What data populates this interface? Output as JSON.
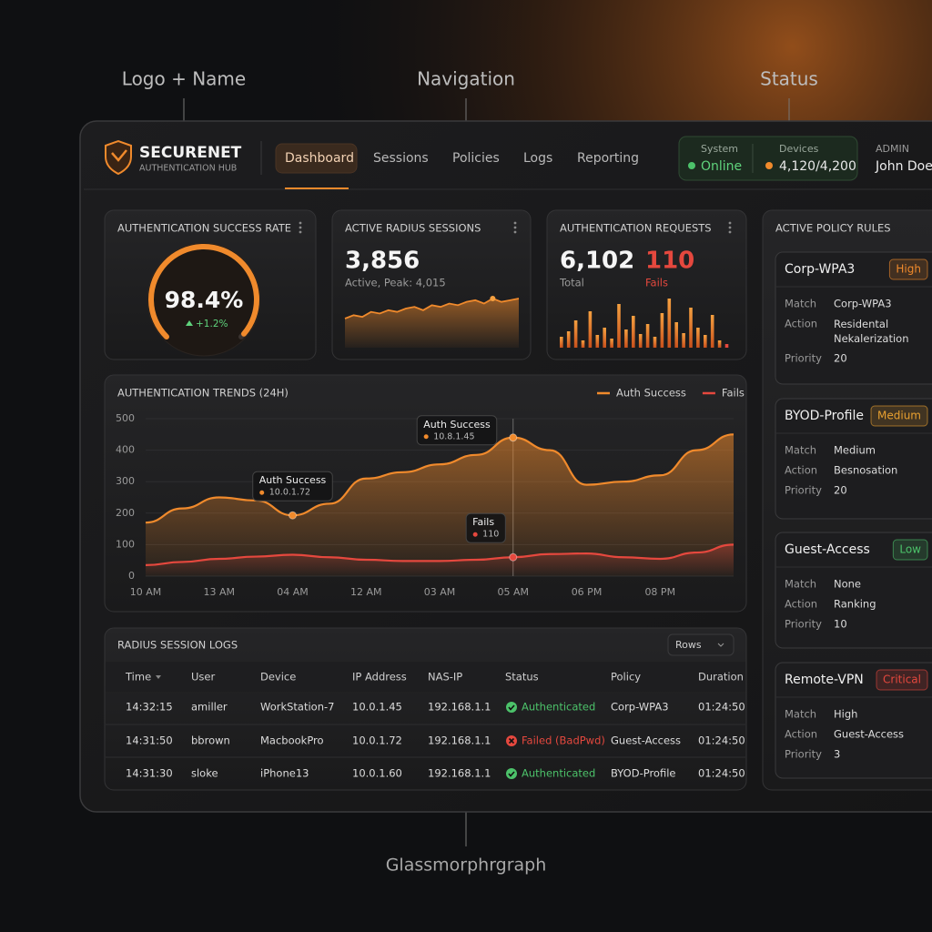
{
  "annotations": {
    "logo": "Logo + Name",
    "navigation": "Navigation",
    "status": "Status",
    "footer": "Glassmorphrgraph"
  },
  "header": {
    "brand": "SECURENET",
    "brand_sub": "AUTHENTICATION HUB",
    "nav": [
      "Dashboard",
      "Sessions",
      "Policies",
      "Logs",
      "Reporting"
    ],
    "nav_active": 0,
    "system_label": "System",
    "system_value": "Online",
    "devices_label": "Devices",
    "devices_value": "4,120/4,200",
    "user_role": "ADMIN",
    "user_name": "John Doe"
  },
  "success_card": {
    "title": "AUTHENTICATION SUCCESS RATE",
    "gauge": {
      "value": 98.4,
      "label": "98.4%",
      "range": [
        0,
        100
      ]
    },
    "change": "+1.2%"
  },
  "sessions_card": {
    "title": "ACTIVE RADIUS SESSIONS",
    "value": "3,856",
    "sub": "Active, Peak: 4,015",
    "sparkline": [
      30,
      32,
      31,
      34,
      33,
      35,
      34,
      36,
      37,
      35,
      38,
      37,
      39,
      38,
      40,
      41,
      39,
      42,
      40,
      41,
      42
    ]
  },
  "requests_card": {
    "title": "AUTHENTICATION REQUESTS",
    "total": "6,102",
    "total_label": "Total",
    "fails": "110",
    "fails_label": "Fails",
    "bars": [
      12,
      18,
      30,
      8,
      40,
      14,
      22,
      10,
      48,
      20,
      35,
      15,
      26,
      12,
      38,
      54,
      28,
      16,
      44,
      22,
      14,
      36,
      8,
      4
    ]
  },
  "chart_data": {
    "type": "line",
    "title": "AUTHENTICATION TRENDS (24H)",
    "categories": [
      "10 AM",
      null,
      "13 AM",
      null,
      "04 AM",
      null,
      "12 AM",
      null,
      "03 AM",
      null,
      "05 AM",
      null,
      "06 PM",
      null,
      "08 PM",
      null,
      null
    ],
    "ylim": [
      0,
      500
    ],
    "yticks": [
      0,
      100,
      200,
      300,
      400,
      500
    ],
    "grid": true,
    "legend": "top-right",
    "series": [
      {
        "name": "Auth Success",
        "color": "#f08a2c",
        "values": [
          170,
          215,
          250,
          240,
          193,
          230,
          310,
          330,
          355,
          385,
          440,
          400,
          290,
          300,
          320,
          400,
          450
        ]
      },
      {
        "name": "Fails",
        "color": "#e5483e",
        "values": [
          35,
          45,
          55,
          62,
          68,
          60,
          52,
          48,
          48,
          52,
          60,
          70,
          72,
          60,
          55,
          75,
          100
        ]
      }
    ],
    "tooltips": [
      {
        "title": "Auth Success",
        "detail": "10.0.1.72",
        "series": 0,
        "index": 4
      },
      {
        "title": "Auth Success",
        "detail": "10.8.1.45",
        "series": 0,
        "index": 10
      },
      {
        "title": "Fails",
        "detail": "110",
        "series": 1,
        "index": 10
      }
    ]
  },
  "logs": {
    "title": "RADIUS SESSION LOGS",
    "rows_control": "Rows",
    "columns": [
      "Time",
      "User",
      "Device",
      "IP Address",
      "NAS-IP",
      "Status",
      "Policy",
      "Duration"
    ],
    "rows": [
      [
        "14:32:15",
        "amiller",
        "WorkStation-7",
        "10.0.1.45",
        "192.168.1.1",
        {
          "text": "Authenticated",
          "icon": "check",
          "color": "#4cc26a"
        },
        "Corp-WPA3",
        "01:24:50"
      ],
      [
        "14:31:50",
        "bbrown",
        "MacbookPro",
        "10.0.1.72",
        "192.168.1.1",
        {
          "text": "Failed (BadPwd)",
          "icon": "cross",
          "color": "#e5483e"
        },
        "Guest-Access",
        "01:24:50"
      ],
      [
        "14:31:30",
        "sloke",
        "iPhone13",
        "10.0.1.60",
        "192.168.1.1",
        {
          "text": "Authenticated",
          "icon": "check",
          "color": "#4cc26a"
        },
        "BYOD-Profile",
        "01:24:50"
      ]
    ]
  },
  "policies": {
    "title": "ACTIVE POLICY RULES",
    "items": [
      {
        "name": "Corp-WPA3",
        "level": "High",
        "level_color": "#f08a2c",
        "fields": [
          {
            "label": "Match",
            "value": "Corp-WPA3"
          },
          {
            "label": "Action",
            "value": "Residental Nekalerization"
          },
          {
            "label": "Priority",
            "value": "20"
          }
        ]
      },
      {
        "name": "BYOD-Profile",
        "level": "Medium",
        "level_color": "#e8a030",
        "fields": [
          {
            "label": "Match",
            "value": "Medium"
          },
          {
            "label": "Action",
            "value": "Besnosation"
          },
          {
            "label": "Priority",
            "value": "20"
          }
        ]
      },
      {
        "name": "Guest-Access",
        "level": "Low",
        "level_color": "#4cc26a",
        "fields": [
          {
            "label": "Match",
            "value": "None"
          },
          {
            "label": "Action",
            "value": "Ranking"
          },
          {
            "label": "Priority",
            "value": "10"
          }
        ]
      },
      {
        "name": "Remote-VPN",
        "level": "Critical",
        "level_color": "#e5483e",
        "fields": [
          {
            "label": "Match",
            "value": "High"
          },
          {
            "label": "Action",
            "value": "Guest-Access"
          },
          {
            "label": "Priority",
            "value": "3"
          }
        ]
      }
    ]
  }
}
